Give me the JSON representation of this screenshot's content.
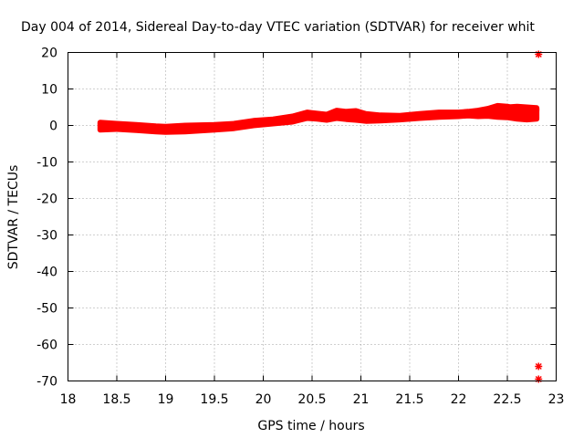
{
  "chart_data": {
    "type": "scatter",
    "title": "Day 004 of 2014, Sidereal Day-to-day VTEC variation (SDTVAR) for receiver whit",
    "xlabel": "GPS time / hours",
    "ylabel": "SDTVAR / TECUs",
    "xlim": [
      18,
      23
    ],
    "ylim": [
      -70,
      20
    ],
    "grid": true,
    "xticks": [
      18,
      18.5,
      19,
      19.5,
      20,
      20.5,
      21,
      21.5,
      22,
      22.5,
      23
    ],
    "xtick_labels": [
      "18",
      "18.5",
      "19",
      "19.5",
      "20",
      "20.5",
      "21",
      "21.5",
      "22",
      "22.5",
      "23"
    ],
    "yticks": [
      20,
      10,
      0,
      -10,
      -20,
      -30,
      -40,
      -50,
      -60,
      -70
    ],
    "ytick_labels": [
      "20",
      "10",
      "0",
      "-10",
      "-20",
      "-30",
      "-40",
      "-50",
      "-60",
      "-70"
    ],
    "series": [
      {
        "color": "#ff0000",
        "marker": "plus",
        "bands": [
          {
            "x": [
              18.33,
              18.5,
              18.7,
              18.9,
              19.0,
              19.2,
              19.5,
              19.7,
              19.9,
              20.1,
              20.3,
              20.45,
              20.55,
              20.65,
              20.75,
              20.85,
              20.95,
              21.05,
              21.2,
              21.4,
              21.6,
              21.8,
              22.0,
              22.1,
              22.2,
              22.3,
              22.4,
              22.5,
              22.6,
              22.7,
              22.8
            ],
            "ylo": [
              -1.2,
              -1.0,
              -1.3,
              -1.7,
              -1.8,
              -1.7,
              -1.2,
              -0.8,
              0.0,
              0.5,
              1.0,
              2.0,
              1.8,
              1.5,
              2.0,
              1.7,
              1.5,
              1.2,
              1.3,
              1.6,
              2.0,
              2.3,
              2.5,
              2.7,
              2.5,
              2.6,
              2.3,
              2.2,
              1.8,
              1.6,
              1.8
            ],
            "yhi": [
              0.8,
              0.5,
              0.2,
              -0.2,
              -0.3,
              0.0,
              0.2,
              0.5,
              1.3,
              1.7,
              2.5,
              3.6,
              3.3,
              3.0,
              4.1,
              3.8,
              4.0,
              3.2,
              2.8,
              2.7,
              3.2,
              3.6,
              3.6,
              3.8,
              4.1,
              4.6,
              5.4,
              5.2,
              4.5,
              4.5,
              4.6
            ]
          },
          {
            "x": [
              22.4,
              22.5,
              22.6,
              22.7,
              22.8
            ],
            "ylo": [
              3.2,
              3.5,
              4.0,
              4.2,
              4.0
            ],
            "yhi": [
              4.8,
              5.0,
              5.2,
              5.0,
              4.8
            ]
          }
        ],
        "outliers": [
          {
            "x": 22.82,
            "y": 19.5
          },
          {
            "x": 22.82,
            "y": -66.0
          },
          {
            "x": 22.82,
            "y": -69.5
          }
        ]
      }
    ]
  }
}
